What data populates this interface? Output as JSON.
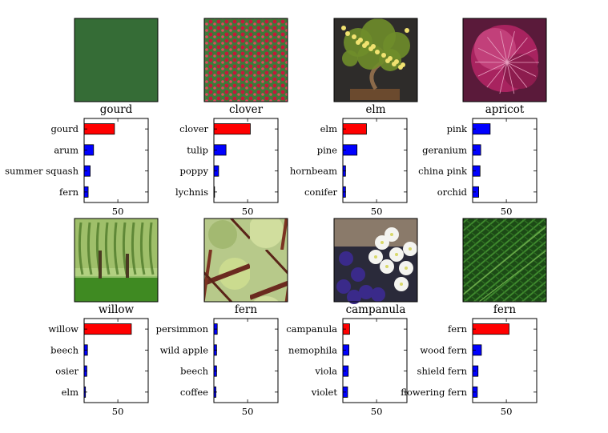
{
  "layout": "4 columns x 2 rows: photo thumbnail with title above a horizontal bar chart of top-4 predictions",
  "chart_data": [
    {
      "type": "bar",
      "orientation": "horizontal",
      "title": "gourd",
      "image": "green gourds photo",
      "categories": [
        "gourd",
        "arum",
        "summer squash",
        "fern"
      ],
      "values": [
        45,
        14,
        9,
        6
      ],
      "colors": [
        "#ff0000",
        "#0000ff",
        "#0000ff",
        "#0000ff"
      ],
      "xticks": [
        50
      ],
      "xlim": [
        0,
        95
      ]
    },
    {
      "type": "bar",
      "orientation": "horizontal",
      "title": "clover",
      "image": "field of red clover flowers",
      "categories": [
        "clover",
        "tulip",
        "poppy",
        "lychnis"
      ],
      "values": [
        54,
        18,
        7,
        1
      ],
      "colors": [
        "#ff0000",
        "#0000ff",
        "#0000ff",
        "#0000ff"
      ],
      "xticks": [
        50
      ],
      "xlim": [
        0,
        95
      ]
    },
    {
      "type": "bar",
      "orientation": "horizontal",
      "title": "elm",
      "image": "bonsai tree with yellow flowers",
      "categories": [
        "elm",
        "pine",
        "hornbeam",
        "conifer"
      ],
      "values": [
        35,
        21,
        4,
        4
      ],
      "colors": [
        "#ff0000",
        "#0000ff",
        "#0000ff",
        "#0000ff"
      ],
      "xticks": [
        50
      ],
      "xlim": [
        0,
        95
      ]
    },
    {
      "type": "bar",
      "orientation": "horizontal",
      "title": "apricot",
      "image": "magenta flower close-up",
      "categories": [
        "pink",
        "geranium",
        "china pink",
        "orchid"
      ],
      "values": [
        26,
        12,
        11,
        9
      ],
      "colors": [
        "#0000ff",
        "#0000ff",
        "#0000ff",
        "#0000ff"
      ],
      "xticks": [
        50
      ],
      "xlim": [
        0,
        95
      ]
    },
    {
      "type": "bar",
      "orientation": "horizontal",
      "title": "willow",
      "image": "willow trees in a park",
      "categories": [
        "willow",
        "beech",
        "osier",
        "elm"
      ],
      "values": [
        70,
        5,
        4,
        2
      ],
      "colors": [
        "#ff0000",
        "#0000ff",
        "#0000ff",
        "#0000ff"
      ],
      "xticks": [
        50
      ],
      "xlim": [
        0,
        95
      ]
    },
    {
      "type": "bar",
      "orientation": "horizontal",
      "title": "fern",
      "image": "leaves and branches close-up",
      "categories": [
        "persimmon",
        "wild apple",
        "beech",
        "coffee"
      ],
      "values": [
        5,
        4,
        4,
        3
      ],
      "colors": [
        "#0000ff",
        "#0000ff",
        "#0000ff",
        "#0000ff"
      ],
      "xticks": [
        50
      ],
      "xlim": [
        0,
        95
      ]
    },
    {
      "type": "bar",
      "orientation": "horizontal",
      "title": "campanula",
      "image": "white and purple campanula flowers",
      "categories": [
        "campanula",
        "nemophila",
        "viola",
        "violet"
      ],
      "values": [
        10,
        9,
        8,
        7
      ],
      "colors": [
        "#ff0000",
        "#0000ff",
        "#0000ff",
        "#0000ff"
      ],
      "xticks": [
        50
      ],
      "xlim": [
        0,
        95
      ]
    },
    {
      "type": "bar",
      "orientation": "horizontal",
      "title": "fern",
      "image": "green fern fronds",
      "categories": [
        "fern",
        "wood fern",
        "shield fern",
        "flowering fern"
      ],
      "values": [
        54,
        13,
        8,
        7
      ],
      "colors": [
        "#ff0000",
        "#0000ff",
        "#0000ff",
        "#0000ff"
      ],
      "xticks": [
        50
      ],
      "xlim": [
        0,
        95
      ]
    }
  ]
}
